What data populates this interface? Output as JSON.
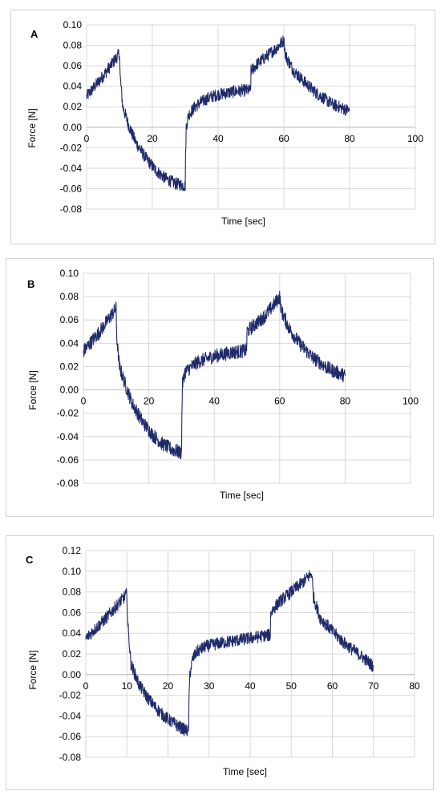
{
  "colors": {
    "line": "#1f2a6b",
    "grid": "#d9d9d9",
    "axis": "#bfbfbf"
  },
  "chart_data": [
    {
      "type": "line",
      "panel_label": "A",
      "xlabel": "Time [sec]",
      "ylabel": "Force [N]",
      "xlim": [
        0,
        100
      ],
      "ylim": [
        -0.08,
        0.1
      ],
      "x_ticks": [
        0,
        20,
        40,
        60,
        80,
        100
      ],
      "x_tick_labels": [
        "0",
        "20",
        "40",
        "60",
        "80",
        "100"
      ],
      "y_ticks": [
        -0.08,
        -0.06,
        -0.04,
        -0.02,
        0,
        0.02,
        0.04,
        0.06,
        0.08,
        0.1
      ],
      "y_tick_labels": [
        "-0.08",
        "-0.06",
        "-0.04",
        "-0.02",
        "0.00",
        "0.02",
        "0.04",
        "0.06",
        "0.08",
        "0.10"
      ],
      "grid": true,
      "series": [
        {
          "x": [
            0,
            5,
            10,
            10.2,
            11,
            13,
            15,
            18,
            21,
            24,
            27,
            30,
            30.1,
            30.3,
            31,
            33,
            35,
            38,
            40,
            42,
            45,
            48,
            49.9,
            50,
            52,
            55,
            58,
            60,
            60.5,
            63,
            66,
            70,
            75,
            80
          ],
          "y": [
            0.03,
            0.05,
            0.072,
            0.05,
            0.02,
            0.0,
            -0.015,
            -0.03,
            -0.042,
            -0.05,
            -0.055,
            -0.057,
            -0.03,
            0.0,
            0.012,
            0.02,
            0.025,
            0.03,
            0.032,
            0.033,
            0.035,
            0.036,
            0.036,
            0.055,
            0.062,
            0.07,
            0.078,
            0.085,
            0.07,
            0.055,
            0.045,
            0.033,
            0.022,
            0.016
          ],
          "noise": 0.006
        }
      ]
    },
    {
      "type": "line",
      "panel_label": "B",
      "xlabel": "Time [sec]",
      "ylabel": "Force [N]",
      "xlim": [
        0,
        100
      ],
      "ylim": [
        -0.08,
        0.1
      ],
      "x_ticks": [
        0,
        20,
        40,
        60,
        80,
        100
      ],
      "x_tick_labels": [
        "0",
        "20",
        "40",
        "60",
        "80",
        "100"
      ],
      "y_ticks": [
        -0.08,
        -0.06,
        -0.04,
        -0.02,
        0,
        0.02,
        0.04,
        0.06,
        0.08,
        0.1
      ],
      "y_tick_labels": [
        "-0.08",
        "-0.06",
        "-0.04",
        "-0.02",
        "0.00",
        "0.02",
        "0.04",
        "0.06",
        "0.08",
        "0.10"
      ],
      "grid": true,
      "series": [
        {
          "x": [
            0,
            5,
            10,
            10.2,
            11,
            13,
            15,
            18,
            21,
            24,
            27,
            30,
            30.1,
            30.3,
            31,
            33,
            35,
            38,
            40,
            42,
            45,
            48,
            49.9,
            50,
            52,
            55,
            58,
            60,
            60.5,
            63,
            66,
            70,
            75,
            80
          ],
          "y": [
            0.033,
            0.05,
            0.07,
            0.045,
            0.02,
            0.003,
            -0.012,
            -0.027,
            -0.038,
            -0.046,
            -0.051,
            -0.054,
            -0.02,
            0.005,
            0.015,
            0.02,
            0.024,
            0.027,
            0.029,
            0.03,
            0.032,
            0.033,
            0.034,
            0.05,
            0.055,
            0.062,
            0.072,
            0.08,
            0.068,
            0.052,
            0.04,
            0.028,
            0.018,
            0.012
          ],
          "noise": 0.006
        }
      ]
    },
    {
      "type": "line",
      "panel_label": "C",
      "xlabel": "Time [sec]",
      "ylabel": "Force [N]",
      "xlim": [
        0,
        80
      ],
      "ylim": [
        -0.08,
        0.12
      ],
      "x_ticks": [
        0,
        10,
        20,
        30,
        40,
        50,
        60,
        70,
        80
      ],
      "x_tick_labels": [
        "0",
        "10",
        "20",
        "30",
        "40",
        "50",
        "60",
        "70",
        "80"
      ],
      "y_ticks": [
        -0.08,
        -0.06,
        -0.04,
        -0.02,
        0,
        0.02,
        0.04,
        0.06,
        0.08,
        0.1,
        0.12
      ],
      "y_tick_labels": [
        "-0.08",
        "-0.06",
        "-0.04",
        "-0.02",
        "0.00",
        "0.02",
        "0.04",
        "0.06",
        "0.08",
        "0.10",
        "0.12"
      ],
      "grid": true,
      "series": [
        {
          "x": [
            0,
            5,
            10,
            10.2,
            11,
            13,
            15,
            17,
            19,
            21,
            23,
            25,
            25.1,
            25.3,
            26,
            27,
            29,
            32,
            35,
            38,
            41,
            44,
            44.9,
            45,
            47,
            50,
            53,
            55,
            55.4,
            57,
            60,
            63,
            67,
            70
          ],
          "y": [
            0.035,
            0.055,
            0.078,
            0.05,
            0.01,
            -0.01,
            -0.022,
            -0.032,
            -0.04,
            -0.046,
            -0.051,
            -0.055,
            -0.03,
            0.0,
            0.015,
            0.022,
            0.027,
            0.03,
            0.032,
            0.034,
            0.036,
            0.038,
            0.038,
            0.06,
            0.07,
            0.08,
            0.09,
            0.098,
            0.075,
            0.055,
            0.042,
            0.03,
            0.018,
            0.008
          ],
          "noise": 0.006
        }
      ]
    }
  ]
}
